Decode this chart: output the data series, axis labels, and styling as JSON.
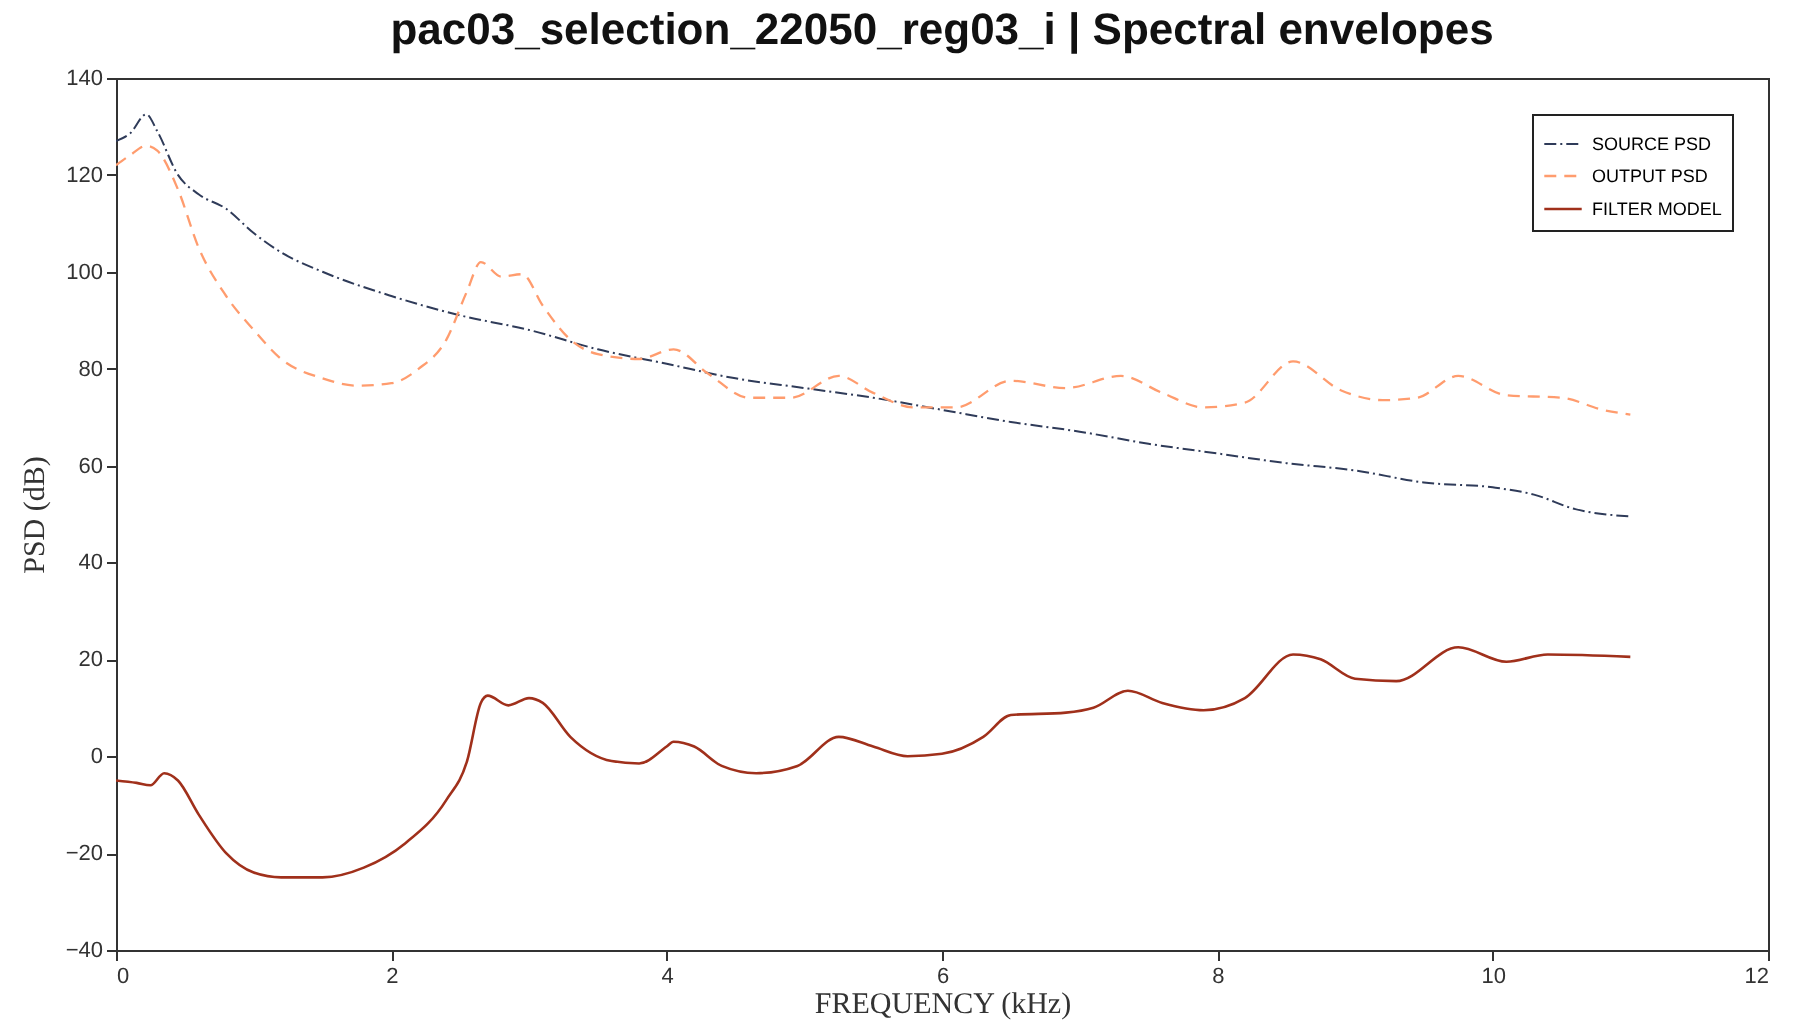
{
  "chart_data": {
    "type": "line",
    "title": "pac03_selection_22050_reg03_i | Spectral envelopes",
    "xlabel": "FREQUENCY (kHz)",
    "ylabel": "PSD (dB)",
    "xlim": [
      0,
      12
    ],
    "xticks": [
      0,
      2,
      4,
      6,
      8,
      10,
      12
    ],
    "ylim": [
      -40,
      140
    ],
    "yticks": [
      -40,
      -20,
      0,
      20,
      40,
      60,
      80,
      100,
      120,
      140
    ],
    "grid": false,
    "legend": "top right",
    "series": [
      {
        "name": "SOURCE PSD",
        "color": "#2f3b59",
        "line_style": "dotted",
        "x": [
          0,
          0.1,
          0.22,
          0.3,
          0.45,
          0.6,
          0.8,
          1.0,
          1.2,
          1.5,
          2.0,
          2.5,
          3.0,
          3.5,
          4.0,
          4.5,
          5.0,
          5.5,
          6.0,
          6.5,
          7.0,
          7.5,
          8.0,
          8.5,
          9.0,
          9.5,
          10.0,
          10.3,
          10.6,
          11.0
        ],
        "values": [
          127,
          128.5,
          132.5,
          129,
          120,
          116,
          113,
          108,
          104,
          100,
          95,
          91,
          88,
          84,
          81,
          78,
          76,
          74,
          71.5,
          69,
          67,
          64.5,
          62.5,
          60.5,
          59,
          56.5,
          55.5,
          54,
          51,
          49.5
        ]
      },
      {
        "name": "OUTPUT PSD",
        "color": "#ff9c6e",
        "line_style": "dashed",
        "x": [
          0,
          0.1,
          0.22,
          0.3,
          0.45,
          0.6,
          0.8,
          1.0,
          1.2,
          1.5,
          1.75,
          2.0,
          2.2,
          2.4,
          2.55,
          2.65,
          2.8,
          2.95,
          3.1,
          3.3,
          3.5,
          3.8,
          4.05,
          4.3,
          4.6,
          4.9,
          5.25,
          5.5,
          5.8,
          6.1,
          6.5,
          6.9,
          7.3,
          7.6,
          7.9,
          8.2,
          8.55,
          8.9,
          9.2,
          9.45,
          9.75,
          10.1,
          10.5,
          10.8,
          11.0
        ],
        "values": [
          122,
          124,
          126,
          125,
          117,
          105,
          95,
          88,
          82,
          78,
          76.5,
          77,
          80,
          86,
          96,
          102,
          99,
          99.5,
          93,
          86,
          83,
          82,
          84,
          79,
          74,
          74,
          78.5,
          75,
          72,
          72,
          77.5,
          76,
          78.5,
          75,
          72,
          73,
          81.5,
          75.5,
          73.5,
          74,
          78.5,
          74.5,
          74,
          71.5,
          70.5
        ]
      },
      {
        "name": "FILTER MODEL",
        "color": "#a0301b",
        "line_style": "solid",
        "x": [
          0,
          0.15,
          0.25,
          0.35,
          0.45,
          0.6,
          0.8,
          1.0,
          1.2,
          1.5,
          1.8,
          2.1,
          2.4,
          2.55,
          2.65,
          2.7,
          2.85,
          3.0,
          3.1,
          3.3,
          3.6,
          3.8,
          4.0,
          4.05,
          4.2,
          4.4,
          4.65,
          4.95,
          5.25,
          5.5,
          5.75,
          6.0,
          6.3,
          6.5,
          6.9,
          7.1,
          7.35,
          7.6,
          7.9,
          8.2,
          8.55,
          8.75,
          9.0,
          9.3,
          9.75,
          10.1,
          10.4,
          11.0
        ],
        "values": [
          -5,
          -5.5,
          -6,
          -3.5,
          -5,
          -12,
          -20,
          -24,
          -25,
          -25,
          -23,
          -18,
          -9,
          -1,
          11,
          12.5,
          10.5,
          12,
          11,
          4,
          -1,
          -1.5,
          2,
          3,
          2,
          -2,
          -3.5,
          -2,
          4,
          2,
          0,
          0.5,
          4,
          8.5,
          9,
          10,
          13.5,
          11,
          9.5,
          12,
          21,
          20,
          16,
          15.5,
          22.5,
          19.5,
          21,
          20.5
        ]
      }
    ]
  }
}
